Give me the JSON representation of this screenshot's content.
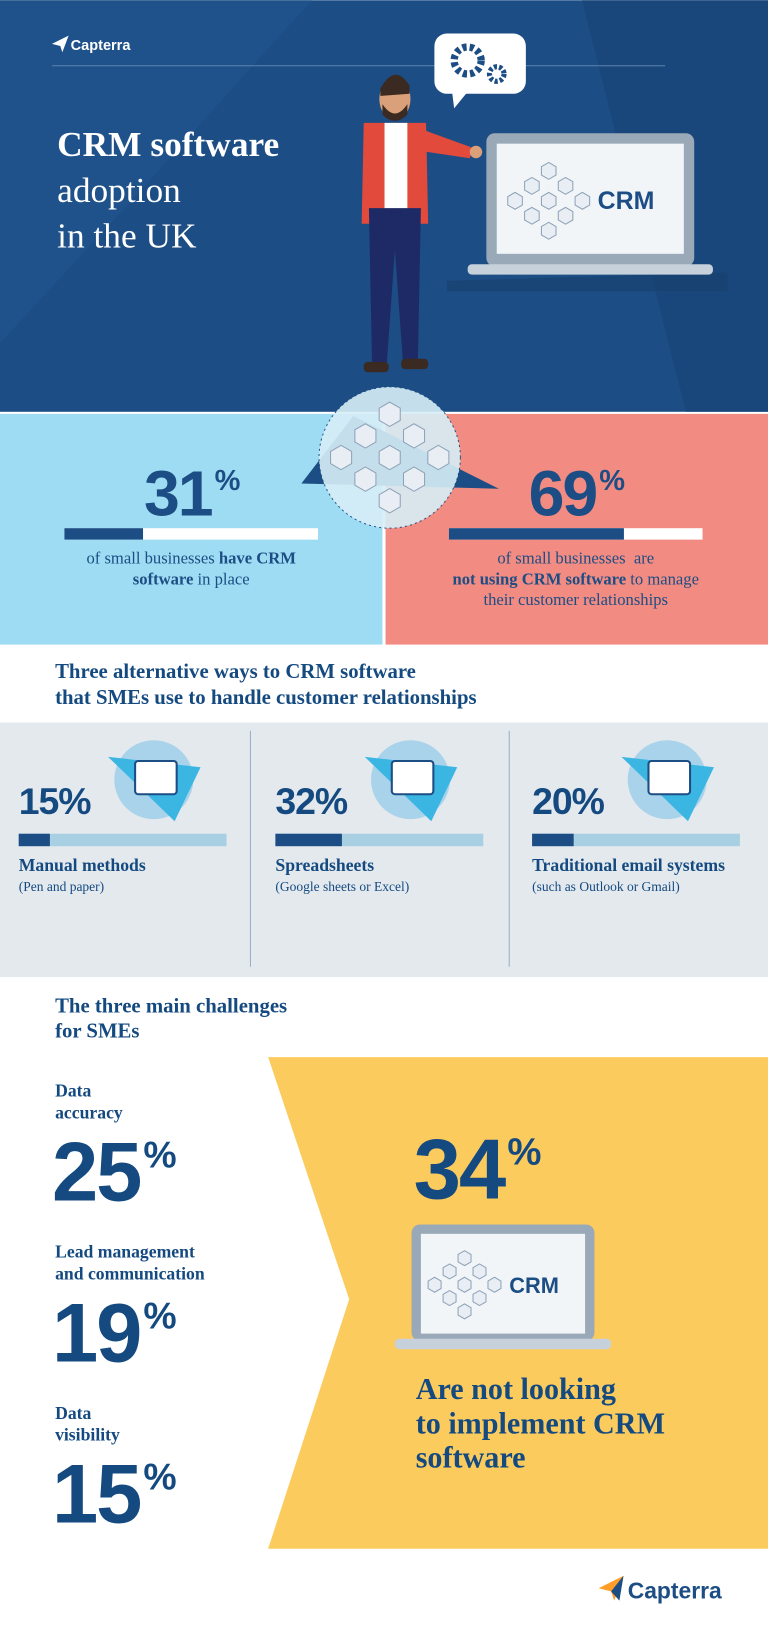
{
  "header": {
    "logo": "Capterra",
    "title_lines": [
      "CRM software",
      "adoption",
      "in the UK"
    ],
    "laptop_label": "CRM"
  },
  "adoption": [
    {
      "value": 31,
      "unit": "%",
      "lines": [
        [
          {
            "text": "of small businesses ",
            "bold": false
          },
          {
            "text": "have CRM",
            "bold": true
          }
        ],
        [
          {
            "text": "software",
            "bold": true
          },
          {
            "text": " in place",
            "bold": false
          }
        ]
      ]
    },
    {
      "value": 69,
      "unit": "%",
      "lines": [
        [
          {
            "text": "of small businesses  are",
            "bold": false
          }
        ],
        [
          {
            "text": "not using CRM software",
            "bold": true
          },
          {
            "text": " to manage",
            "bold": false
          }
        ],
        [
          {
            "text": "their customer relationships",
            "bold": false
          }
        ]
      ]
    }
  ],
  "alternatives": {
    "title_lines": [
      "Three alternative ways to CRM software",
      "that SMEs use to handle customer relationships"
    ],
    "items": [
      {
        "value": 15,
        "unit": "%",
        "label": "Manual methods",
        "note": "(Pen and paper)"
      },
      {
        "value": 32,
        "unit": "%",
        "label": "Spreadsheets",
        "note": "(Google sheets or Excel)"
      },
      {
        "value": 20,
        "unit": "%",
        "label": "Traditional email systems",
        "note": "(such as Outlook or Gmail)"
      }
    ]
  },
  "challenges": {
    "title_lines": [
      "The three main challenges",
      "for SMEs"
    ],
    "items": [
      {
        "label_lines": [
          "Data",
          "accuracy"
        ],
        "value": 25,
        "unit": "%"
      },
      {
        "label_lines": [
          "Lead management",
          "and communication"
        ],
        "value": 19,
        "unit": "%"
      },
      {
        "label_lines": [
          "Data",
          "visibility"
        ],
        "value": 15,
        "unit": "%"
      }
    ]
  },
  "not_looking": {
    "value": 34,
    "unit": "%",
    "laptop_label": "CRM",
    "lines": [
      "Are not looking",
      "to implement CRM",
      "software"
    ]
  },
  "footer": {
    "logo": "Capterra"
  }
}
